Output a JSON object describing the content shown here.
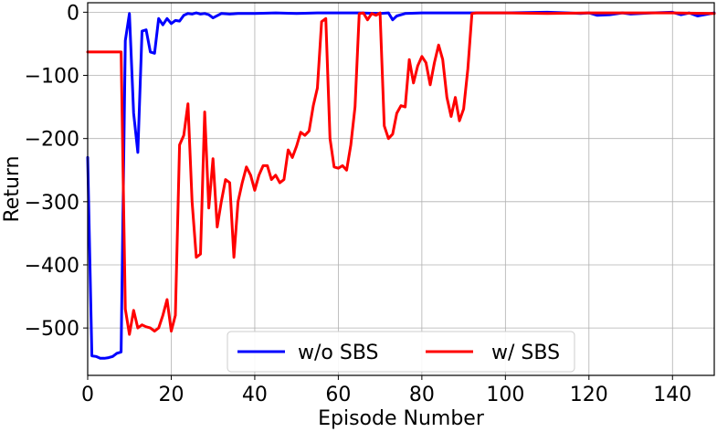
{
  "chart_data": {
    "type": "line",
    "title": "",
    "xlabel": "Episode Number",
    "ylabel": "Return",
    "xlim": [
      0,
      150
    ],
    "ylim": [
      -575,
      15
    ],
    "xticks": [
      0,
      20,
      40,
      60,
      80,
      100,
      120,
      140
    ],
    "yticks": [
      0,
      -100,
      -200,
      -300,
      -400,
      -500
    ],
    "ytick_labels": [
      "0",
      "−100",
      "−200",
      "−300",
      "−400",
      "−500"
    ],
    "grid": true,
    "legend_placement": "lower-center",
    "series": [
      {
        "name": "w/o SBS",
        "color": "#0000ff",
        "x": [
          0,
          1,
          2,
          3,
          4,
          5,
          6,
          7,
          8,
          9,
          10,
          11,
          12,
          13,
          14,
          15,
          16,
          17,
          18,
          19,
          20,
          21,
          22,
          23,
          24,
          25,
          26,
          27,
          28,
          29,
          30,
          32,
          34,
          36,
          40,
          45,
          50,
          55,
          60,
          65,
          70,
          72,
          73,
          74,
          76,
          80,
          90,
          100,
          110,
          115,
          118,
          120,
          122,
          125,
          128,
          130,
          135,
          140,
          142,
          144,
          146,
          150
        ],
        "y": [
          -230,
          -544,
          -545,
          -548,
          -548,
          -547,
          -545,
          -540,
          -538,
          -45,
          -2,
          -160,
          -222,
          -30,
          -28,
          -63,
          -65,
          -10,
          -20,
          -10,
          -18,
          -13,
          -14,
          -5,
          -2,
          -3,
          -1,
          -3,
          -2,
          -4,
          -9,
          -2,
          -3,
          -2,
          -2,
          -1,
          -2,
          -1,
          -1,
          -1,
          -2,
          -1,
          -12,
          -6,
          -2,
          -1,
          -1,
          -1,
          0,
          -1,
          -2,
          -1,
          -5,
          -4,
          -1,
          -3,
          -1,
          0,
          -4,
          -1,
          -6,
          -1
        ]
      },
      {
        "name": "w/ SBS",
        "color": "#ff0000",
        "x": [
          0,
          1,
          2,
          3,
          4,
          5,
          6,
          7,
          8,
          9,
          10,
          11,
          12,
          13,
          14,
          15,
          16,
          17,
          18,
          19,
          20,
          21,
          22,
          23,
          24,
          25,
          26,
          27,
          28,
          29,
          30,
          31,
          32,
          33,
          34,
          35,
          36,
          37,
          38,
          39,
          40,
          41,
          42,
          43,
          44,
          45,
          46,
          47,
          48,
          49,
          50,
          51,
          52,
          53,
          54,
          55,
          56,
          57,
          58,
          59,
          60,
          61,
          62,
          63,
          64,
          65,
          66,
          67,
          68,
          69,
          70,
          71,
          72,
          73,
          74,
          75,
          76,
          77,
          78,
          79,
          80,
          81,
          82,
          83,
          84,
          85,
          86,
          87,
          88,
          89,
          90,
          91,
          92,
          93,
          95,
          100,
          110,
          120,
          130,
          140,
          150
        ],
        "y": [
          -63,
          -63,
          -63,
          -63,
          -63,
          -63,
          -63,
          -63,
          -63,
          -470,
          -510,
          -472,
          -500,
          -495,
          -498,
          -500,
          -505,
          -500,
          -480,
          -455,
          -505,
          -480,
          -210,
          -195,
          -145,
          -300,
          -388,
          -383,
          -158,
          -310,
          -232,
          -340,
          -300,
          -265,
          -270,
          -388,
          -300,
          -270,
          -245,
          -258,
          -282,
          -258,
          -243,
          -243,
          -265,
          -258,
          -270,
          -265,
          -218,
          -230,
          -212,
          -190,
          -195,
          -188,
          -148,
          -120,
          -15,
          -10,
          -200,
          -245,
          -247,
          -243,
          -250,
          -210,
          -150,
          -2,
          -1,
          -12,
          -2,
          -5,
          -1,
          -180,
          -200,
          -193,
          -160,
          -148,
          -150,
          -75,
          -112,
          -85,
          -70,
          -80,
          -115,
          -80,
          -52,
          -75,
          -135,
          -165,
          -135,
          -172,
          -153,
          -90,
          -2,
          -1,
          -1,
          -1,
          -2,
          -1,
          -1,
          -1,
          -2
        ]
      }
    ]
  }
}
